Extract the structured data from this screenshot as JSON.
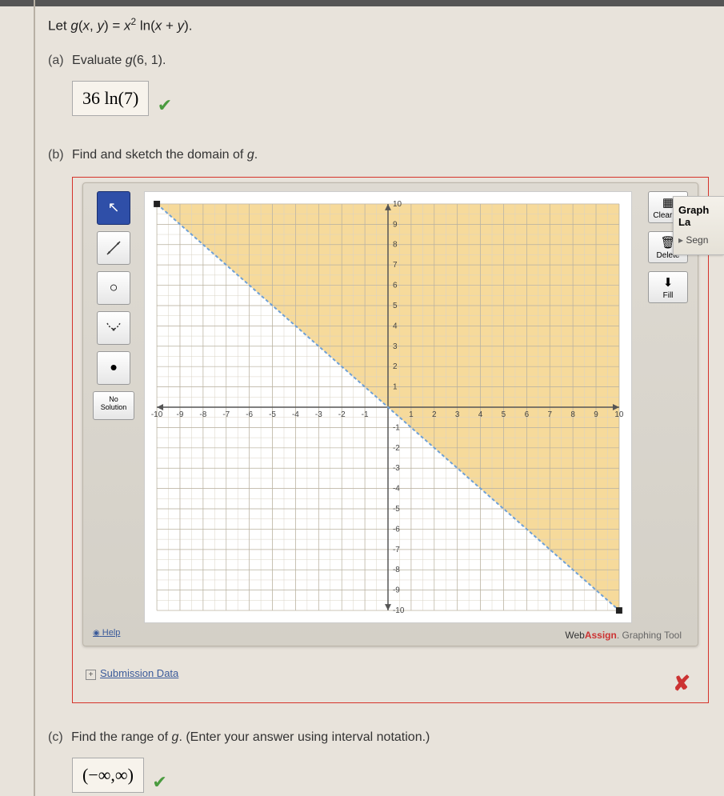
{
  "question": {
    "stem_html": "Let <i>g</i>(<i>x</i>, <i>y</i>) = <i>x</i><sup>2</sup> ln(<i>x</i> + <i>y</i>).",
    "parts": {
      "a": {
        "label": "(a)",
        "text": "Evaluate g(6, 1).",
        "answer_display": "36 ln(7)",
        "correct": true
      },
      "b": {
        "label": "(b)",
        "text": "Find and sketch the domain of g.",
        "correct": false
      },
      "c": {
        "label": "(c)",
        "text": "Find the range of g. (Enter your answer using interval notation.)",
        "answer_display": "(−∞,∞)",
        "correct": true
      }
    }
  },
  "graph_tool": {
    "left_tools": {
      "pointer": "↖",
      "line": "↗",
      "circle": "○",
      "region": "∪",
      "point": "•",
      "no_solution": "No\nSolution"
    },
    "right_tools": {
      "clear_all": "Clear All",
      "delete": "Delete",
      "fill": "Fill"
    },
    "help": "Help",
    "credit": {
      "web": "Web",
      "assign": "Assign",
      "rest": ". Graphing Tool"
    },
    "submission_data": "Submission Data",
    "axes": {
      "xmin": -10,
      "xmax": 10,
      "ymin": -10,
      "ymax": 10,
      "major_step": 1,
      "grid_minor": "#d9d3c6",
      "grid_major": "#b8b09e",
      "axis_color": "#555",
      "tick_font": 10
    },
    "plot": {
      "shade_color": "#f5d48a",
      "line_color": "#6ea0d6",
      "line_dash": "4 3",
      "line_p1": [
        -10,
        10
      ],
      "line_p2": [
        10,
        -10
      ],
      "endpoints_color": "#222"
    }
  },
  "ext_tab": {
    "row1": "Graph La",
    "row2": "Segn"
  },
  "colors": {
    "frame_red": "#d5332a",
    "check_green": "#4a9b3f",
    "cross_red": "#cc3333"
  }
}
